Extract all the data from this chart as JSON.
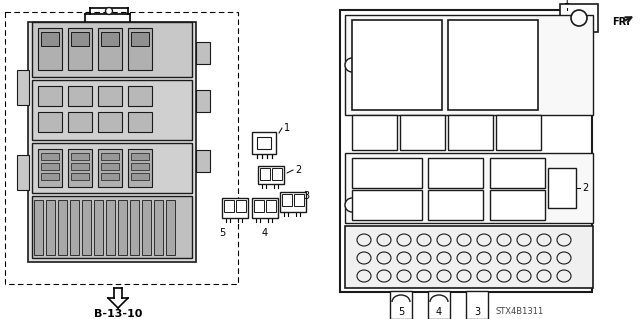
{
  "bg_color": "#ffffff",
  "label_b1310": "B-13-10",
  "label_stx": "STX4B1311",
  "label_fr": "FR.",
  "line_color": "#1a1a1a",
  "gray_fill": "#d8d8d8",
  "light_gray": "#eeeeee",
  "white": "#ffffff"
}
